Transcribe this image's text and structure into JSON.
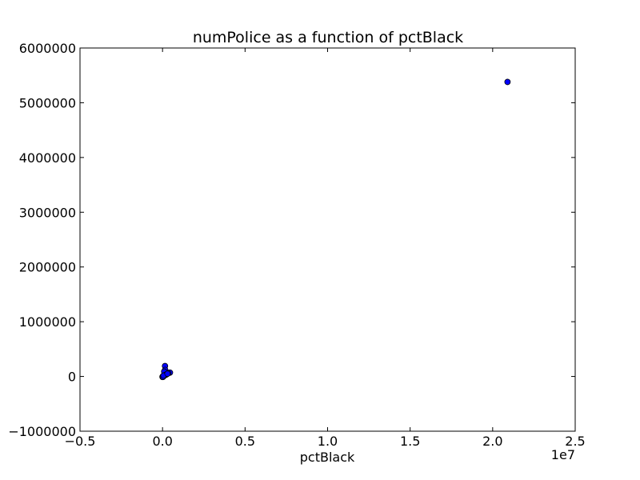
{
  "chart_data": {
    "type": "scatter",
    "title": "numPolice as a function of pctBlack",
    "xlabel": "pctBlack",
    "ylabel": "",
    "x_offset_label": "1e7",
    "xlim": [
      -5000000,
      25000000
    ],
    "ylim": [
      -1000000,
      6000000
    ],
    "x_ticks": [
      -5000000,
      0,
      5000000,
      10000000,
      15000000,
      20000000,
      25000000
    ],
    "x_tick_labels": [
      "−0.5",
      "0.0",
      "0.5",
      "1.0",
      "1.5",
      "2.0",
      "2.5"
    ],
    "y_ticks": [
      -1000000,
      0,
      1000000,
      2000000,
      3000000,
      4000000,
      5000000,
      6000000
    ],
    "y_tick_labels": [
      "−1000000",
      "0",
      "1000000",
      "2000000",
      "3000000",
      "4000000",
      "5000000",
      "6000000"
    ],
    "grid": false,
    "marker_color": "#0000ff",
    "series": [
      {
        "points": [
          {
            "x": 20900000,
            "y": 5380000
          },
          {
            "x": 150000,
            "y": 190000
          },
          {
            "x": 160000,
            "y": 120000
          },
          {
            "x": 100000,
            "y": 90000
          },
          {
            "x": 450000,
            "y": 70000
          },
          {
            "x": 350000,
            "y": 60000
          },
          {
            "x": 250000,
            "y": 40000
          },
          {
            "x": 200000,
            "y": 30000
          },
          {
            "x": 120000,
            "y": 20000
          },
          {
            "x": 80000,
            "y": 10000
          },
          {
            "x": 40000,
            "y": 5000
          },
          {
            "x": 20000,
            "y": 2000
          },
          {
            "x": 10000,
            "y": 0
          },
          {
            "x": 5000,
            "y": -5000
          },
          {
            "x": 0,
            "y": -10000
          },
          {
            "x": 30000,
            "y": -8000
          },
          {
            "x": 60000,
            "y": 15000
          },
          {
            "x": 300000,
            "y": 50000
          }
        ]
      }
    ]
  }
}
